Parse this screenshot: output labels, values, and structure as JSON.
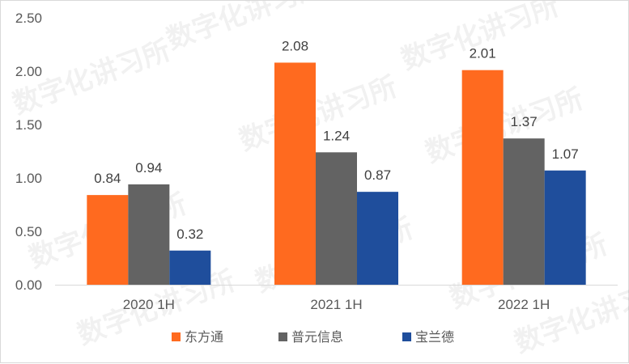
{
  "chart_data": {
    "type": "bar",
    "categories": [
      "2020 1H",
      "2021 1H",
      "2022 1H"
    ],
    "series": [
      {
        "name": "东方通",
        "values": [
          0.84,
          2.08,
          2.01
        ],
        "color": "#ff6a1f"
      },
      {
        "name": "普元信息",
        "values": [
          0.94,
          1.24,
          1.37
        ],
        "color": "#636363"
      },
      {
        "name": "宝兰德",
        "values": [
          0.32,
          0.87,
          1.07
        ],
        "color": "#1f4e9c"
      }
    ],
    "y_ticks": [
      "0.00",
      "0.50",
      "1.00",
      "1.50",
      "2.00",
      "2.50"
    ],
    "ylim": [
      0,
      2.5
    ],
    "grid": false,
    "legend_position": "bottom",
    "data_labels": true,
    "watermark": "数字化讲习所"
  }
}
